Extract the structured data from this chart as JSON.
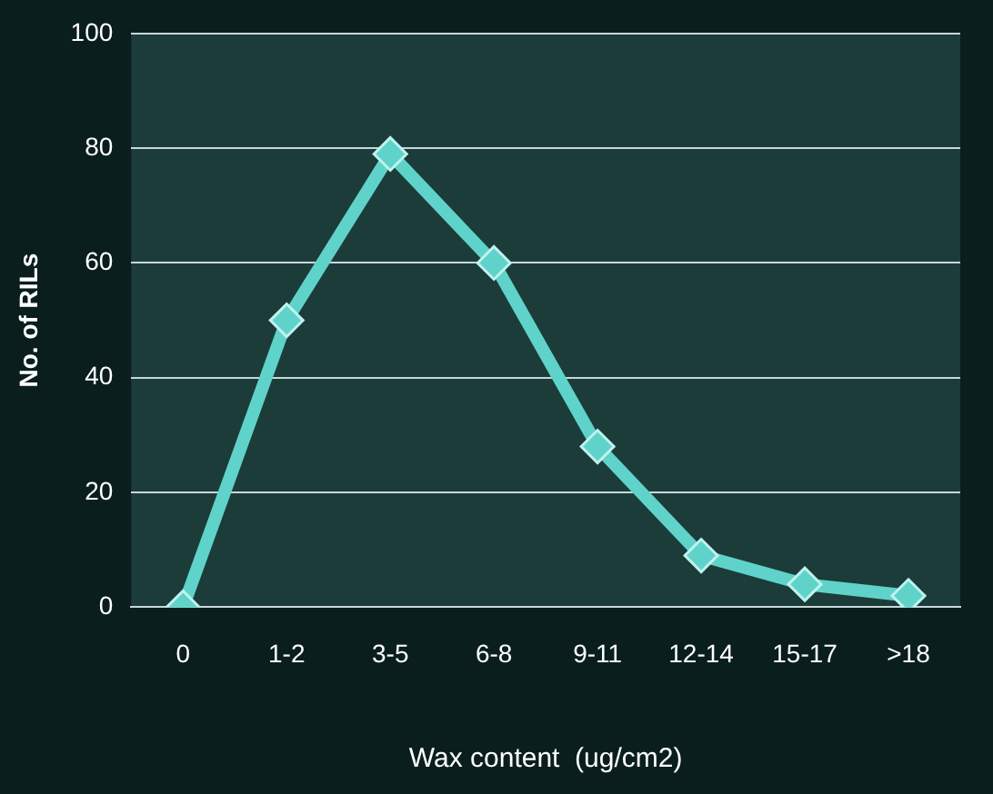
{
  "chart_data": {
    "type": "line",
    "xlabel": "Wax content  (ug/cm2)",
    "ylabel": "No. of RILs",
    "categories": [
      "0",
      "1-2",
      "3-5",
      "6-8",
      "9-11",
      "12-14",
      "15-17",
      ">18"
    ],
    "series": [
      {
        "color": "#5fd3c9",
        "values": [
          0,
          50,
          79,
          60,
          28,
          9,
          4,
          2
        ]
      }
    ],
    "ylim": [
      0,
      100
    ],
    "yticks": [
      0,
      20,
      40,
      60,
      80,
      100
    ],
    "grid": "y",
    "legend": false,
    "marker": "diamond",
    "line_style": "solid"
  }
}
